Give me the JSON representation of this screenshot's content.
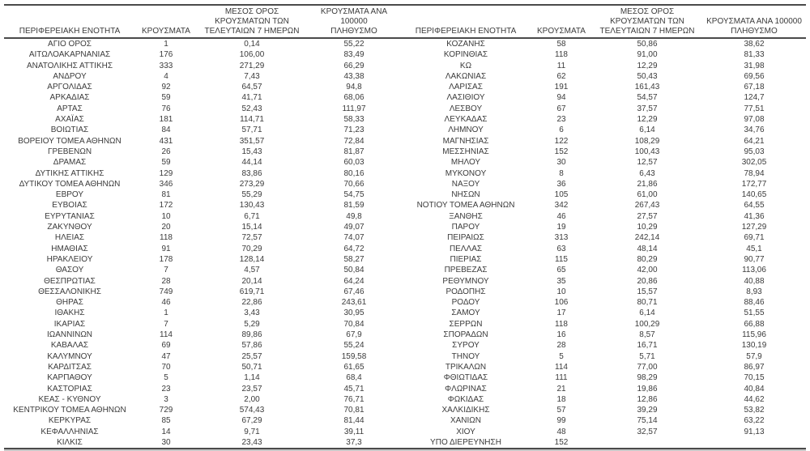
{
  "colors": {
    "text": "#3b3b3b",
    "line": "#4a4a4a",
    "line_soft": "#c8c8c8",
    "background": "#ffffff"
  },
  "table": {
    "headers": [
      [
        "ΠΕΡΙΦΕΡΕΙΑΚΗ ΕΝΟΤΗΤΑ"
      ],
      [
        "ΚΡΟΥΣΜΑΤΑ"
      ],
      [
        "ΜΕΣΟΣ ΟΡΟΣ",
        "ΚΡΟΥΣΜΑΤΩΝ ΤΩΝ",
        "ΤΕΛΕΥΤΑΙΩΝ 7 ΗΜΕΡΩΝ"
      ],
      [
        "ΚΡΟΥΣΜΑΤΑ ΑΝΑ 100000",
        "ΠΛΗΘΥΣΜΟ"
      ]
    ],
    "left_rows": [
      [
        "ΑΓΙΟ ΟΡΟΣ",
        "1",
        "0,14",
        "55,22"
      ],
      [
        "ΑΙΤΩΛΟΑΚΑΡΝΑΝΙΑΣ",
        "176",
        "106,00",
        "83,49"
      ],
      [
        "ΑΝΑΤΟΛΙΚΗΣ ΑΤΤΙΚΗΣ",
        "333",
        "271,29",
        "66,29"
      ],
      [
        "ΑΝΔΡΟΥ",
        "4",
        "7,43",
        "43,38"
      ],
      [
        "ΑΡΓΟΛΙΔΑΣ",
        "92",
        "64,57",
        "94,8"
      ],
      [
        "ΑΡΚΑΔΙΑΣ",
        "59",
        "41,71",
        "68,06"
      ],
      [
        "ΑΡΤΑΣ",
        "76",
        "52,43",
        "111,97"
      ],
      [
        "ΑΧΑΪΑΣ",
        "181",
        "114,71",
        "58,33"
      ],
      [
        "ΒΟΙΩΤΙΑΣ",
        "84",
        "57,71",
        "71,23"
      ],
      [
        "ΒΟΡΕΙΟΥ ΤΟΜΕΑ ΑΘΗΝΩΝ",
        "431",
        "351,57",
        "72,84"
      ],
      [
        "ΓΡΕΒΕΝΩΝ",
        "26",
        "15,43",
        "81,87"
      ],
      [
        "ΔΡΑΜΑΣ",
        "59",
        "44,14",
        "60,03"
      ],
      [
        "ΔΥΤΙΚΗΣ ΑΤΤΙΚΗΣ",
        "129",
        "83,86",
        "80,16"
      ],
      [
        "ΔΥΤΙΚΟΥ ΤΟΜΕΑ ΑΘΗΝΩΝ",
        "346",
        "273,29",
        "70,66"
      ],
      [
        "ΕΒΡΟΥ",
        "81",
        "55,29",
        "54,75"
      ],
      [
        "ΕΥΒΟΙΑΣ",
        "172",
        "130,43",
        "81,59"
      ],
      [
        "ΕΥΡΥΤΑΝΙΑΣ",
        "10",
        "6,71",
        "49,8"
      ],
      [
        "ΖΑΚΥΝΘΟΥ",
        "20",
        "15,14",
        "49,07"
      ],
      [
        "ΗΛΕΙΑΣ",
        "118",
        "72,57",
        "74,07"
      ],
      [
        "ΗΜΑΘΙΑΣ",
        "91",
        "70,29",
        "64,72"
      ],
      [
        "ΗΡΑΚΛΕΙΟΥ",
        "178",
        "128,14",
        "58,27"
      ],
      [
        "ΘΑΣΟΥ",
        "7",
        "4,57",
        "50,84"
      ],
      [
        "ΘΕΣΠΡΩΤΙΑΣ",
        "28",
        "20,14",
        "64,24"
      ],
      [
        "ΘΕΣΣΑΛΟΝΙΚΗΣ",
        "749",
        "619,71",
        "67,46"
      ],
      [
        "ΘΗΡΑΣ",
        "46",
        "22,86",
        "243,61"
      ],
      [
        "ΙΘΑΚΗΣ",
        "1",
        "3,43",
        "30,95"
      ],
      [
        "ΙΚΑΡΙΑΣ",
        "7",
        "5,29",
        "70,84"
      ],
      [
        "ΙΩΑΝΝΙΝΩΝ",
        "114",
        "89,86",
        "67,9"
      ],
      [
        "ΚΑΒΑΛΑΣ",
        "69",
        "57,86",
        "55,24"
      ],
      [
        "ΚΑΛΥΜΝΟΥ",
        "47",
        "25,57",
        "159,58"
      ],
      [
        "ΚΑΡΔΙΤΣΑΣ",
        "70",
        "50,71",
        "61,65"
      ],
      [
        "ΚΑΡΠΑΘΟΥ",
        "5",
        "1,14",
        "68,4"
      ],
      [
        "ΚΑΣΤΟΡΙΑΣ",
        "23",
        "23,57",
        "45,71"
      ],
      [
        "ΚΕΑΣ - ΚΥΘΝΟΥ",
        "3",
        "2,00",
        "76,71"
      ],
      [
        "ΚΕΝΤΡΙΚΟΥ ΤΟΜΕΑ ΑΘΗΝΩΝ",
        "729",
        "574,43",
        "70,81"
      ],
      [
        "ΚΕΡΚΥΡΑΣ",
        "85",
        "67,29",
        "81,44"
      ],
      [
        "ΚΕΦΑΛΛΗΝΙΑΣ",
        "14",
        "9,71",
        "39,11"
      ],
      [
        "ΚΙΛΚΙΣ",
        "30",
        "23,43",
        "37,3"
      ]
    ],
    "right_rows": [
      [
        "ΚΟΖΑΝΗΣ",
        "58",
        "50,86",
        "38,62"
      ],
      [
        "ΚΟΡΙΝΘΙΑΣ",
        "118",
        "91,00",
        "81,33"
      ],
      [
        "ΚΩ",
        "11",
        "12,29",
        "31,98"
      ],
      [
        "ΛΑΚΩΝΙΑΣ",
        "62",
        "50,43",
        "69,56"
      ],
      [
        "ΛΑΡΙΣΑΣ",
        "191",
        "161,43",
        "67,18"
      ],
      [
        "ΛΑΣΙΘΙΟΥ",
        "94",
        "54,57",
        "124,7"
      ],
      [
        "ΛΕΣΒΟΥ",
        "67",
        "37,57",
        "77,51"
      ],
      [
        "ΛΕΥΚΑΔΑΣ",
        "23",
        "12,29",
        "97,08"
      ],
      [
        "ΛΗΜΝΟΥ",
        "6",
        "6,14",
        "34,76"
      ],
      [
        "ΜΑΓΝΗΣΙΑΣ",
        "122",
        "108,29",
        "64,21"
      ],
      [
        "ΜΕΣΣΗΝΙΑΣ",
        "152",
        "100,43",
        "95,03"
      ],
      [
        "ΜΗΛΟΥ",
        "30",
        "12,57",
        "302,05"
      ],
      [
        "ΜΥΚΟΝΟΥ",
        "8",
        "6,43",
        "78,94"
      ],
      [
        "ΝΑΞΟΥ",
        "36",
        "21,86",
        "172,77"
      ],
      [
        "ΝΗΣΩΝ",
        "105",
        "61,00",
        "140,65"
      ],
      [
        "ΝΟΤΙΟΥ ΤΟΜΕΑ ΑΘΗΝΩΝ",
        "342",
        "267,43",
        "64,55"
      ],
      [
        "ΞΑΝΘΗΣ",
        "46",
        "27,57",
        "41,36"
      ],
      [
        "ΠΑΡΟΥ",
        "19",
        "10,29",
        "127,29"
      ],
      [
        "ΠΕΙΡΑΙΩΣ",
        "313",
        "242,14",
        "69,71"
      ],
      [
        "ΠΕΛΛΑΣ",
        "63",
        "48,14",
        "45,1"
      ],
      [
        "ΠΙΕΡΙΑΣ",
        "115",
        "80,29",
        "90,77"
      ],
      [
        "ΠΡΕΒΕΖΑΣ",
        "65",
        "42,00",
        "113,06"
      ],
      [
        "ΡΕΘΥΜΝΟΥ",
        "35",
        "20,86",
        "40,88"
      ],
      [
        "ΡΟΔΟΠΗΣ",
        "10",
        "15,57",
        "8,93"
      ],
      [
        "ΡΟΔΟΥ",
        "106",
        "80,71",
        "88,46"
      ],
      [
        "ΣΑΜΟΥ",
        "17",
        "6,14",
        "51,55"
      ],
      [
        "ΣΕΡΡΩΝ",
        "118",
        "100,29",
        "66,88"
      ],
      [
        "ΣΠΟΡΑΔΩΝ",
        "16",
        "8,57",
        "115,96"
      ],
      [
        "ΣΥΡΟΥ",
        "28",
        "16,71",
        "130,19"
      ],
      [
        "ΤΗΝΟΥ",
        "5",
        "5,71",
        "57,9"
      ],
      [
        "ΤΡΙΚΑΛΩΝ",
        "114",
        "77,00",
        "86,97"
      ],
      [
        "ΦΘΙΩΤΙΔΑΣ",
        "111",
        "98,29",
        "70,15"
      ],
      [
        "ΦΛΩΡΙΝΑΣ",
        "21",
        "19,86",
        "40,84"
      ],
      [
        "ΦΩΚΙΔΑΣ",
        "18",
        "12,86",
        "44,62"
      ],
      [
        "ΧΑΛΚΙΔΙΚΗΣ",
        "57",
        "39,29",
        "53,82"
      ],
      [
        "ΧΑΝΙΩΝ",
        "99",
        "75,14",
        "63,22"
      ],
      [
        "ΧΙΟΥ",
        "48",
        "32,57",
        "91,13"
      ],
      [
        "ΥΠΟ ΔΙΕΡΕΥΝΗΣΗ",
        "152",
        "",
        ""
      ]
    ]
  }
}
